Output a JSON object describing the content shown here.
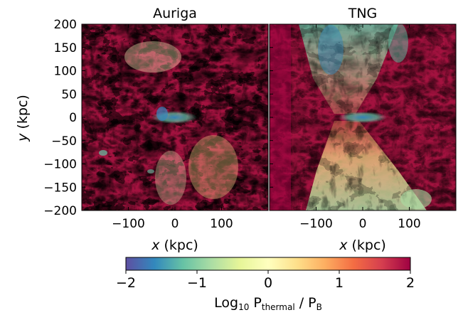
{
  "figure": {
    "panels": [
      {
        "title": "Auriga",
        "id": "auriga"
      },
      {
        "title": "TNG",
        "id": "tng"
      }
    ],
    "y_axis": {
      "label_var": "y",
      "label_unit": " (kpc)",
      "ticks": [
        "200",
        "150",
        "100",
        "50",
        "0",
        "−50",
        "−100",
        "−150",
        "−200"
      ]
    },
    "x_axis": {
      "label_var": "x",
      "label_unit": " (kpc)",
      "ticks": [
        "−100",
        "0",
        "100"
      ]
    },
    "colorbar": {
      "ticks": [
        "−2",
        "−1",
        "0",
        "1",
        "2"
      ],
      "label_prefix": "Log",
      "label_sub": "10",
      "label_p1": " P",
      "label_sub1": "thermal",
      "label_mid": " / P",
      "label_sub2": "B",
      "range": [
        -2,
        2
      ],
      "colormap": "Spectral_r",
      "stops": [
        "#5e4fa2",
        "#3288bd",
        "#66c2a5",
        "#abdda4",
        "#e6f598",
        "#ffffbf",
        "#fee08b",
        "#fdae61",
        "#f46d43",
        "#d53e4f",
        "#9e0142"
      ]
    },
    "colors": {
      "dominant": "#a3123f",
      "mid": "#f46d43",
      "light": "#fee08b",
      "cool": "#66c2a5",
      "cold": "#3288bd"
    }
  }
}
